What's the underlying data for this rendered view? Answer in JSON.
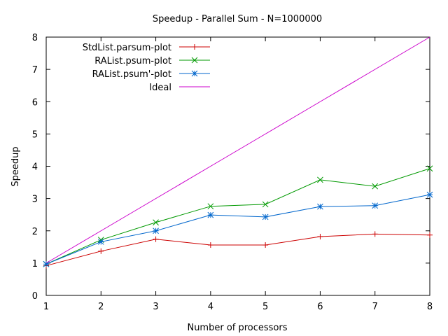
{
  "chart_data": {
    "type": "line",
    "title": "Speedup - Parallel Sum - N=1000000",
    "xlabel": "Number of processors",
    "ylabel": "Speedup",
    "xlim": [
      1,
      8
    ],
    "ylim": [
      0,
      8
    ],
    "xticks": [
      "1",
      "2",
      "3",
      "4",
      "5",
      "6",
      "7",
      "8"
    ],
    "yticks": [
      "0",
      "1",
      "2",
      "3",
      "4",
      "5",
      "6",
      "7",
      "8"
    ],
    "x": [
      1,
      2,
      3,
      4,
      5,
      6,
      7,
      8
    ],
    "grid": false,
    "legend_position": "top-left",
    "series": [
      {
        "name": "StdList.parsum-plot",
        "color": "#cc0000",
        "marker": "plus",
        "values": [
          0.92,
          1.37,
          1.74,
          1.56,
          1.56,
          1.82,
          1.9,
          1.87
        ]
      },
      {
        "name": "RAList.psum-plot",
        "color": "#009900",
        "marker": "cross",
        "values": [
          0.97,
          1.72,
          2.26,
          2.76,
          2.82,
          3.58,
          3.38,
          3.93
        ]
      },
      {
        "name": "RAList.psum'-plot",
        "color": "#0066cc",
        "marker": "star",
        "values": [
          0.97,
          1.66,
          2.0,
          2.49,
          2.43,
          2.75,
          2.78,
          3.12
        ]
      },
      {
        "name": "Ideal",
        "color": "#cc00cc",
        "marker": "none",
        "values": [
          1,
          2,
          3,
          4,
          5,
          6,
          7,
          8
        ]
      }
    ]
  }
}
